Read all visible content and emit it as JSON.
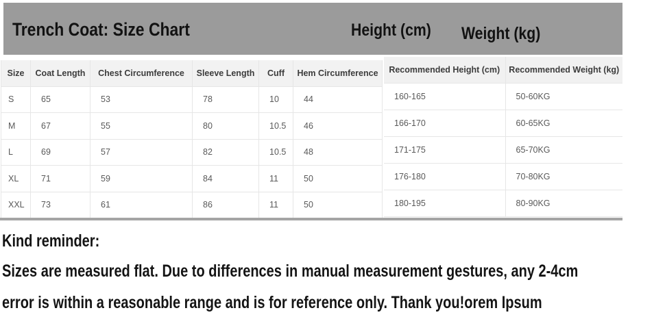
{
  "title_bar": {
    "title": "Trench Coat: Size Chart",
    "height_label": "Height (cm)",
    "weight_label": "Weight (kg)",
    "bg_color": "#9b9b9b"
  },
  "size_table": {
    "columns": [
      "Size",
      "Coat Length",
      "Chest Circumference",
      "Sleeve Length",
      "Cuff",
      "Hem Circumference"
    ],
    "rows": [
      [
        "S",
        "65",
        "53",
        "78",
        "10",
        "44"
      ],
      [
        "M",
        "67",
        "55",
        "80",
        "10.5",
        "46"
      ],
      [
        "L",
        "69",
        "57",
        "82",
        "10.5",
        "48"
      ],
      [
        "XL",
        "71",
        "59",
        "84",
        "11",
        "50"
      ],
      [
        "XXL",
        "73",
        "61",
        "86",
        "11",
        "50"
      ]
    ]
  },
  "fit_table": {
    "columns": [
      "Recommended Height (cm)",
      "Recommended Weight (kg)"
    ],
    "rows": [
      [
        "160-165",
        "50-60KG"
      ],
      [
        "166-170",
        "60-65KG"
      ],
      [
        "171-175",
        "65-70KG"
      ],
      [
        "176-180",
        "70-80KG"
      ],
      [
        "180-195",
        "80-90KG"
      ]
    ]
  },
  "reminder": {
    "heading": "Kind reminder:",
    "line1": "Sizes are measured flat. Due to differences in manual measurement gestures, any 2-4cm",
    "line2": "error is within a reasonable range and is for reference only. Thank you!orem Ipsum"
  },
  "colors": {
    "banner_gray": "#9b9b9b",
    "divider_gray": "#a5a5a5",
    "table_header_bg": "#f2f2f2",
    "table_border": "#e6e6e6",
    "data_text": "#595959"
  }
}
